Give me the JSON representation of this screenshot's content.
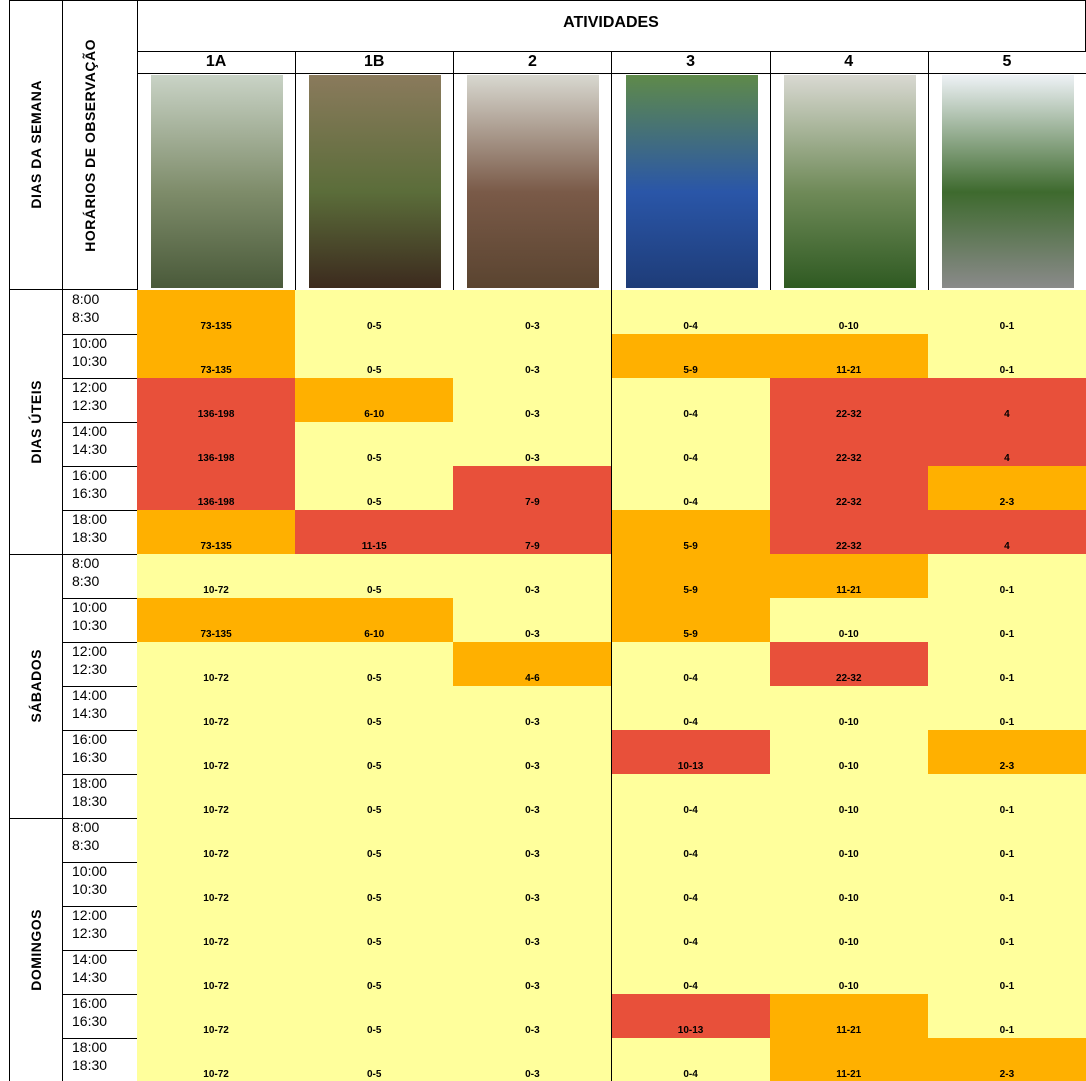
{
  "header": {
    "title": "ATIVIDADES",
    "day_header": "DIAS DA SEMANA",
    "time_header": "HORÁRIOS DE OBSERVAÇÃO",
    "columns": [
      "1A",
      "1B",
      "2",
      "3",
      "4",
      "5"
    ]
  },
  "groups": [
    {
      "label": "DIAS ÚTEIS",
      "rows": [
        {
          "start": "8:00",
          "end": "8:30",
          "cells": [
            {
              "text": "73-135",
              "color": "#ffb000"
            },
            {
              "text": "0-5",
              "color": "#ffff9c"
            },
            {
              "text": "0-3",
              "color": "#ffff9c"
            },
            {
              "text": "0-4",
              "color": "#ffff9c"
            },
            {
              "text": "0-10",
              "color": "#ffff9c"
            },
            {
              "text": "0-1",
              "color": "#ffff9c"
            }
          ]
        },
        {
          "start": "10:00",
          "end": "10:30",
          "cells": [
            {
              "text": "73-135",
              "color": "#ffb000"
            },
            {
              "text": "0-5",
              "color": "#ffff9c"
            },
            {
              "text": "0-3",
              "color": "#ffff9c"
            },
            {
              "text": "5-9",
              "color": "#ffb000"
            },
            {
              "text": "11-21",
              "color": "#ffb000"
            },
            {
              "text": "0-1",
              "color": "#ffff9c"
            }
          ]
        },
        {
          "start": "12:00",
          "end": "12:30",
          "cells": [
            {
              "text": "136-198",
              "color": "#e8503a"
            },
            {
              "text": "6-10",
              "color": "#ffb000"
            },
            {
              "text": "0-3",
              "color": "#ffff9c"
            },
            {
              "text": "0-4",
              "color": "#ffff9c"
            },
            {
              "text": "22-32",
              "color": "#e8503a"
            },
            {
              "text": "4",
              "color": "#e8503a"
            }
          ]
        },
        {
          "start": "14:00",
          "end": "14:30",
          "cells": [
            {
              "text": "136-198",
              "color": "#e8503a"
            },
            {
              "text": "0-5",
              "color": "#ffff9c"
            },
            {
              "text": "0-3",
              "color": "#ffff9c"
            },
            {
              "text": "0-4",
              "color": "#ffff9c"
            },
            {
              "text": "22-32",
              "color": "#e8503a"
            },
            {
              "text": "4",
              "color": "#e8503a"
            }
          ]
        },
        {
          "start": "16:00",
          "end": "16:30",
          "cells": [
            {
              "text": "136-198",
              "color": "#e8503a"
            },
            {
              "text": "0-5",
              "color": "#ffff9c"
            },
            {
              "text": "7-9",
              "color": "#e8503a"
            },
            {
              "text": "0-4",
              "color": "#ffff9c"
            },
            {
              "text": "22-32",
              "color": "#e8503a"
            },
            {
              "text": "2-3",
              "color": "#ffb000"
            }
          ]
        },
        {
          "start": "18:00",
          "end": "18:30",
          "cells": [
            {
              "text": "73-135",
              "color": "#ffb000"
            },
            {
              "text": "11-15",
              "color": "#e8503a"
            },
            {
              "text": "7-9",
              "color": "#e8503a"
            },
            {
              "text": "5-9",
              "color": "#ffb000"
            },
            {
              "text": "22-32",
              "color": "#e8503a"
            },
            {
              "text": "4",
              "color": "#e8503a"
            }
          ]
        }
      ]
    },
    {
      "label": "SÁBADOS",
      "rows": [
        {
          "start": "8:00",
          "end": "8:30",
          "cells": [
            {
              "text": "10-72",
              "color": "#ffff9c"
            },
            {
              "text": "0-5",
              "color": "#ffff9c"
            },
            {
              "text": "0-3",
              "color": "#ffff9c"
            },
            {
              "text": "5-9",
              "color": "#ffb000"
            },
            {
              "text": "11-21",
              "color": "#ffb000"
            },
            {
              "text": "0-1",
              "color": "#ffff9c"
            }
          ]
        },
        {
          "start": "10:00",
          "end": "10:30",
          "cells": [
            {
              "text": "73-135",
              "color": "#ffb000"
            },
            {
              "text": "6-10",
              "color": "#ffb000"
            },
            {
              "text": "0-3",
              "color": "#ffff9c"
            },
            {
              "text": "5-9",
              "color": "#ffb000"
            },
            {
              "text": "0-10",
              "color": "#ffff9c"
            },
            {
              "text": "0-1",
              "color": "#ffff9c"
            }
          ]
        },
        {
          "start": "12:00",
          "end": "12:30",
          "cells": [
            {
              "text": "10-72",
              "color": "#ffff9c"
            },
            {
              "text": "0-5",
              "color": "#ffff9c"
            },
            {
              "text": "4-6",
              "color": "#ffb000"
            },
            {
              "text": "0-4",
              "color": "#ffff9c"
            },
            {
              "text": "22-32",
              "color": "#e8503a"
            },
            {
              "text": "0-1",
              "color": "#ffff9c"
            }
          ]
        },
        {
          "start": "14:00",
          "end": "14:30",
          "cells": [
            {
              "text": "10-72",
              "color": "#ffff9c"
            },
            {
              "text": "0-5",
              "color": "#ffff9c"
            },
            {
              "text": "0-3",
              "color": "#ffff9c"
            },
            {
              "text": "0-4",
              "color": "#ffff9c"
            },
            {
              "text": "0-10",
              "color": "#ffff9c"
            },
            {
              "text": "0-1",
              "color": "#ffff9c"
            }
          ]
        },
        {
          "start": "16:00",
          "end": "16:30",
          "cells": [
            {
              "text": "10-72",
              "color": "#ffff9c"
            },
            {
              "text": "0-5",
              "color": "#ffff9c"
            },
            {
              "text": "0-3",
              "color": "#ffff9c"
            },
            {
              "text": "10-13",
              "color": "#e8503a"
            },
            {
              "text": "0-10",
              "color": "#ffff9c"
            },
            {
              "text": "2-3",
              "color": "#ffb000"
            }
          ]
        },
        {
          "start": "18:00",
          "end": "18:30",
          "cells": [
            {
              "text": "10-72",
              "color": "#ffff9c"
            },
            {
              "text": "0-5",
              "color": "#ffff9c"
            },
            {
              "text": "0-3",
              "color": "#ffff9c"
            },
            {
              "text": "0-4",
              "color": "#ffff9c"
            },
            {
              "text": "0-10",
              "color": "#ffff9c"
            },
            {
              "text": "0-1",
              "color": "#ffff9c"
            }
          ]
        }
      ]
    },
    {
      "label": "DOMINGOS",
      "rows": [
        {
          "start": "8:00",
          "end": "8:30",
          "cells": [
            {
              "text": "10-72",
              "color": "#ffff9c"
            },
            {
              "text": "0-5",
              "color": "#ffff9c"
            },
            {
              "text": "0-3",
              "color": "#ffff9c"
            },
            {
              "text": "0-4",
              "color": "#ffff9c"
            },
            {
              "text": "0-10",
              "color": "#ffff9c"
            },
            {
              "text": "0-1",
              "color": "#ffff9c"
            }
          ]
        },
        {
          "start": "10:00",
          "end": "10:30",
          "cells": [
            {
              "text": "10-72",
              "color": "#ffff9c"
            },
            {
              "text": "0-5",
              "color": "#ffff9c"
            },
            {
              "text": "0-3",
              "color": "#ffff9c"
            },
            {
              "text": "0-4",
              "color": "#ffff9c"
            },
            {
              "text": "0-10",
              "color": "#ffff9c"
            },
            {
              "text": "0-1",
              "color": "#ffff9c"
            }
          ]
        },
        {
          "start": "12:00",
          "end": "12:30",
          "cells": [
            {
              "text": "10-72",
              "color": "#ffff9c"
            },
            {
              "text": "0-5",
              "color": "#ffff9c"
            },
            {
              "text": "0-3",
              "color": "#ffff9c"
            },
            {
              "text": "0-4",
              "color": "#ffff9c"
            },
            {
              "text": "0-10",
              "color": "#ffff9c"
            },
            {
              "text": "0-1",
              "color": "#ffff9c"
            }
          ]
        },
        {
          "start": "14:00",
          "end": "14:30",
          "cells": [
            {
              "text": "10-72",
              "color": "#ffff9c"
            },
            {
              "text": "0-5",
              "color": "#ffff9c"
            },
            {
              "text": "0-3",
              "color": "#ffff9c"
            },
            {
              "text": "0-4",
              "color": "#ffff9c"
            },
            {
              "text": "0-10",
              "color": "#ffff9c"
            },
            {
              "text": "0-1",
              "color": "#ffff9c"
            }
          ]
        },
        {
          "start": "16:00",
          "end": "16:30",
          "cells": [
            {
              "text": "10-72",
              "color": "#ffff9c"
            },
            {
              "text": "0-5",
              "color": "#ffff9c"
            },
            {
              "text": "0-3",
              "color": "#ffff9c"
            },
            {
              "text": "10-13",
              "color": "#e8503a"
            },
            {
              "text": "11-21",
              "color": "#ffb000"
            },
            {
              "text": "0-1",
              "color": "#ffff9c"
            }
          ]
        },
        {
          "start": "18:00",
          "end": "18:30",
          "cells": [
            {
              "text": "10-72",
              "color": "#ffff9c"
            },
            {
              "text": "0-5",
              "color": "#ffff9c"
            },
            {
              "text": "0-3",
              "color": "#ffff9c"
            },
            {
              "text": "0-4",
              "color": "#ffff9c"
            },
            {
              "text": "11-21",
              "color": "#ffb000"
            },
            {
              "text": "2-3",
              "color": "#ffb000"
            }
          ]
        }
      ]
    }
  ]
}
